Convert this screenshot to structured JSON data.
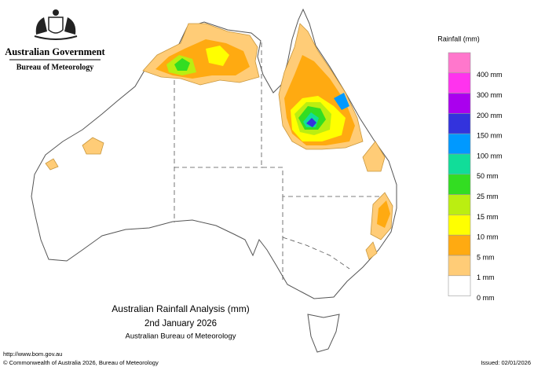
{
  "header": {
    "government": "Australian Government",
    "agency": "Bureau of Meteorology"
  },
  "legend": {
    "title": "Rainfall (mm)",
    "colors": [
      "#ff77cc",
      "#ff33ee",
      "#aa00ee",
      "#3333dd",
      "#0099ff",
      "#11dd99",
      "#33dd22",
      "#bbee11",
      "#ffff00",
      "#ffaa11",
      "#ffcc77",
      "#ffffff"
    ],
    "labels": [
      "400 mm",
      "300 mm",
      "200 mm",
      "150 mm",
      "100 mm",
      "50 mm",
      "25 mm",
      "15 mm",
      "10 mm",
      "5 mm",
      "1 mm",
      "0 mm"
    ]
  },
  "caption": {
    "title": "Australian Rainfall Analysis (mm)",
    "date": "2nd January 2026",
    "source": "Australian Bureau of Meteorology"
  },
  "footer": {
    "url": "http://www.bom.gov.au",
    "copyright": "© Commonwealth of Australia 2026, Bureau of Meteorology",
    "issued": "Issued: 02/01/2026"
  }
}
